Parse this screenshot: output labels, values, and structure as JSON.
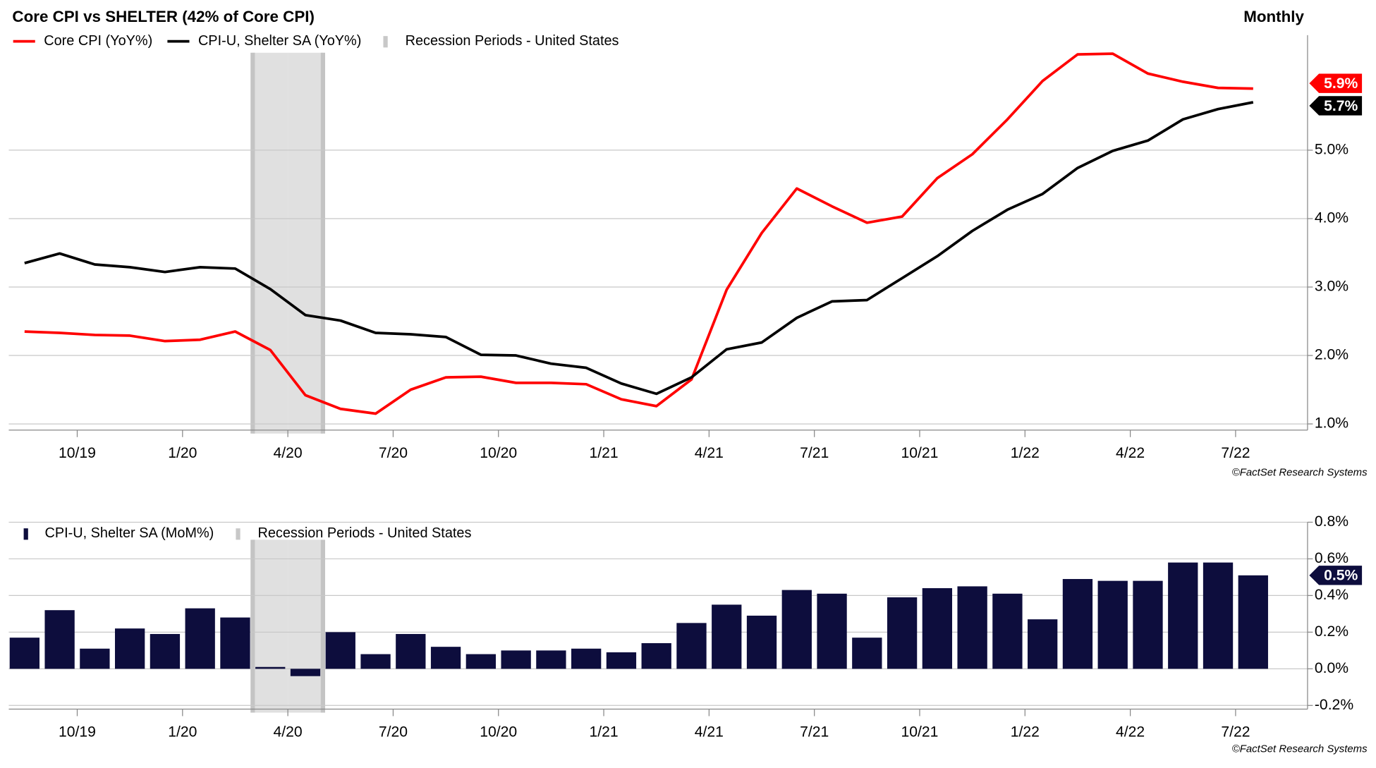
{
  "chart_data": [
    {
      "type": "line",
      "title": "Core CPI vs SHELTER (42% of Core CPI)",
      "subtitle": "Monthly",
      "source": "©FactSet Research Systems",
      "categories": [
        null,
        null,
        "10/19",
        null,
        null,
        "1/20",
        null,
        null,
        "4/20",
        null,
        null,
        "7/20",
        null,
        null,
        "10/20",
        null,
        null,
        "1/21",
        null,
        null,
        "4/21",
        null,
        null,
        "7/21",
        null,
        null,
        "10/21",
        null,
        null,
        "1/22",
        null,
        null,
        "4/22",
        null,
        null,
        "7/22"
      ],
      "series": [
        {
          "name": "Core CPI (YoY%)",
          "color": "#ff0000",
          "values": [
            2.35,
            2.33,
            2.3,
            2.29,
            2.21,
            2.23,
            2.35,
            2.08,
            1.42,
            1.22,
            1.15,
            1.5,
            1.68,
            1.69,
            1.6,
            1.6,
            1.58,
            1.36,
            1.26,
            1.65,
            2.96,
            3.79,
            4.44,
            4.18,
            3.94,
            4.03,
            4.59,
            4.94,
            5.45,
            6.01,
            6.4,
            6.41,
            6.12,
            6.0,
            5.91,
            5.9
          ],
          "value_labels": [
            null,
            null,
            null,
            null,
            null,
            null,
            null,
            null,
            null,
            null,
            null,
            null,
            null,
            null,
            null,
            null,
            null,
            null,
            null,
            null,
            null,
            null,
            null,
            null,
            null,
            null,
            null,
            null,
            null,
            null,
            null,
            null,
            null,
            null,
            null,
            "5.9%"
          ]
        },
        {
          "name": "CPI-U, Shelter SA (YoY%)",
          "color": "#000000",
          "values": [
            3.35,
            3.49,
            3.33,
            3.29,
            3.22,
            3.29,
            3.27,
            2.97,
            2.59,
            2.51,
            2.33,
            2.31,
            2.27,
            2.01,
            2.0,
            1.88,
            1.82,
            1.59,
            1.44,
            1.68,
            2.09,
            2.19,
            2.55,
            2.79,
            2.81,
            3.13,
            3.45,
            3.82,
            4.13,
            4.36,
            4.74,
            4.99,
            5.14,
            5.45,
            5.6,
            5.7
          ],
          "value_labels": [
            null,
            null,
            null,
            null,
            null,
            null,
            null,
            null,
            null,
            null,
            null,
            null,
            null,
            null,
            null,
            null,
            null,
            null,
            null,
            null,
            null,
            null,
            null,
            null,
            null,
            null,
            null,
            null,
            null,
            null,
            null,
            null,
            null,
            null,
            null,
            "5.7%"
          ]
        }
      ],
      "recession": {
        "name": "Recession Periods - United States",
        "color": "#e0e0e0",
        "values": [
          0,
          0,
          0,
          0,
          0,
          0,
          0,
          1,
          1,
          0,
          0,
          0,
          0,
          0,
          0,
          0,
          0,
          0,
          0,
          0,
          0,
          0,
          0,
          0,
          0,
          0,
          0,
          0,
          0,
          0,
          0,
          0,
          0,
          0,
          0,
          0
        ]
      },
      "ylim": [
        0.91,
        6.68
      ],
      "yticks": [
        {
          "value": 1,
          "label": "1.0%"
        },
        {
          "value": 2,
          "label": "2.0%"
        },
        {
          "value": 3,
          "label": "3.0%"
        },
        {
          "value": 4,
          "label": "4.0%"
        },
        {
          "value": 5,
          "label": "5.0%"
        }
      ],
      "grid": true
    },
    {
      "type": "bar",
      "source": "©FactSet Research Systems",
      "categories": [
        null,
        null,
        "10/19",
        null,
        null,
        "1/20",
        null,
        null,
        "4/20",
        null,
        null,
        "7/20",
        null,
        null,
        "10/20",
        null,
        null,
        "1/21",
        null,
        null,
        "4/21",
        null,
        null,
        "7/21",
        null,
        null,
        "10/21",
        null,
        null,
        "1/22",
        null,
        null,
        "4/22",
        null,
        null,
        "7/22"
      ],
      "series": [
        {
          "name": "CPI-U, Shelter SA (MoM%)",
          "color": "#0d0d3d",
          "values": [
            0.17,
            0.32,
            0.11,
            0.22,
            0.19,
            0.33,
            0.28,
            0.01,
            -0.04,
            0.2,
            0.08,
            0.19,
            0.12,
            0.08,
            0.1,
            0.1,
            0.11,
            0.09,
            0.14,
            0.25,
            0.35,
            0.29,
            0.43,
            0.41,
            0.17,
            0.39,
            0.44,
            0.45,
            0.41,
            0.27,
            0.49,
            0.48,
            0.48,
            0.58,
            0.58,
            0.51
          ],
          "value_labels": [
            null,
            null,
            null,
            null,
            null,
            null,
            null,
            null,
            null,
            null,
            null,
            null,
            null,
            null,
            null,
            null,
            null,
            null,
            null,
            null,
            null,
            null,
            null,
            null,
            null,
            null,
            null,
            null,
            null,
            null,
            null,
            null,
            null,
            null,
            null,
            "0.5%"
          ]
        }
      ],
      "recession": {
        "name": "Recession Periods - United States",
        "color": "#e0e0e0",
        "values": [
          0,
          0,
          0,
          0,
          0,
          0,
          0,
          1,
          1,
          0,
          0,
          0,
          0,
          0,
          0,
          0,
          0,
          0,
          0,
          0,
          0,
          0,
          0,
          0,
          0,
          0,
          0,
          0,
          0,
          0,
          0,
          0,
          0,
          0,
          0,
          0
        ]
      },
      "ylim": [
        -0.22,
        0.8
      ],
      "yticks": [
        {
          "value": -0.2,
          "label": "-0.2%"
        },
        {
          "value": 0,
          "label": "0.0%"
        },
        {
          "value": 0.2,
          "label": "0.2%"
        },
        {
          "value": 0.4,
          "label": "0.4%"
        },
        {
          "value": 0.6,
          "label": "0.6%"
        },
        {
          "value": 0.8,
          "label": "0.8%"
        }
      ],
      "grid": true
    }
  ]
}
